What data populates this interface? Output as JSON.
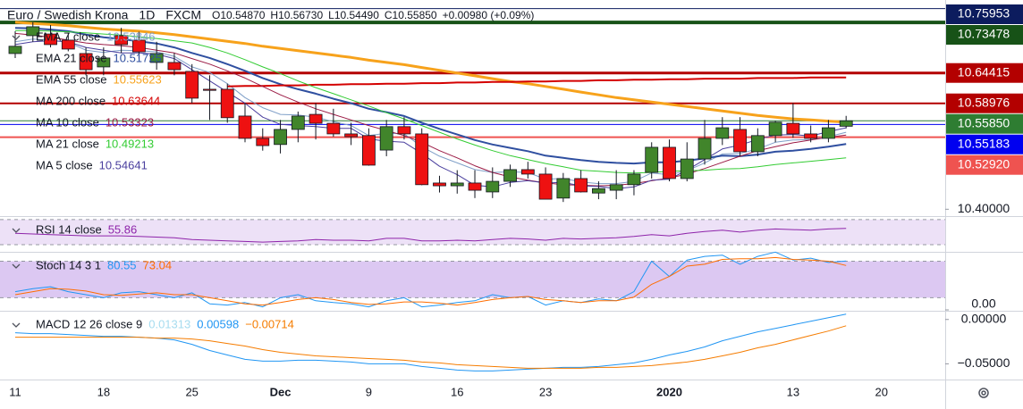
{
  "header": {
    "symbol": "Euro / Swedish Krona",
    "interval": "1D",
    "source": "FXCM",
    "ohlc": [
      {
        "label": "O",
        "value": "10.54870"
      },
      {
        "label": "H",
        "value": "10.56730"
      },
      {
        "label": "L",
        "value": "10.54490"
      },
      {
        "label": "C",
        "value": "10.55850"
      }
    ],
    "change": "+0.00980 (+0.09%)"
  },
  "chart_data": [
    {
      "type": "candlestick",
      "categories": [
        "11",
        null,
        null,
        null,
        null,
        "18",
        null,
        null,
        null,
        null,
        "25",
        null,
        null,
        null,
        null,
        "Dec",
        null,
        null,
        null,
        null,
        "9",
        null,
        null,
        null,
        null,
        "16",
        null,
        null,
        null,
        null,
        "23",
        null,
        null,
        null,
        null,
        null,
        null,
        "2020",
        null,
        null,
        null,
        null,
        null,
        null,
        "13",
        null,
        null,
        null,
        null,
        "20"
      ],
      "open": [
        10.679,
        10.711,
        10.714,
        10.703,
        10.679,
        10.655,
        10.711,
        10.703,
        10.663,
        10.663,
        10.647,
        10.615,
        10.615,
        10.567,
        10.527,
        10.516,
        10.543,
        10.57,
        10.554,
        10.535,
        10.532,
        10.506,
        10.548,
        10.535,
        10.447,
        10.442,
        10.447,
        10.431,
        10.45,
        10.471,
        10.463,
        10.42,
        10.455,
        10.429,
        10.434,
        10.444,
        10.466,
        10.511,
        10.455,
        10.49,
        10.527,
        10.543,
        10.503,
        10.532,
        10.554,
        10.535,
        10.527,
        10.5487,
        null,
        null
      ],
      "high": [
        10.719,
        10.735,
        10.73,
        10.715,
        10.69,
        10.69,
        10.725,
        10.718,
        10.7,
        10.68,
        10.66,
        10.64,
        10.625,
        10.59,
        10.545,
        10.56,
        10.575,
        10.59,
        10.58,
        10.555,
        10.545,
        10.56,
        10.565,
        10.545,
        10.46,
        10.47,
        10.47,
        10.475,
        10.48,
        10.485,
        10.475,
        10.465,
        10.47,
        10.45,
        10.47,
        10.47,
        10.52,
        10.525,
        10.52,
        10.56,
        10.565,
        10.565,
        10.545,
        10.558,
        10.59,
        10.55,
        10.56,
        10.5673,
        null,
        null
      ],
      "low": [
        10.671,
        10.7,
        10.69,
        10.683,
        10.64,
        10.64,
        10.68,
        10.67,
        10.65,
        10.64,
        10.59,
        10.56,
        10.555,
        10.52,
        10.505,
        10.5,
        10.52,
        10.525,
        10.53,
        10.515,
        10.478,
        10.495,
        10.525,
        10.443,
        10.43,
        10.428,
        10.42,
        10.42,
        10.44,
        10.455,
        10.418,
        10.413,
        10.43,
        10.418,
        10.418,
        10.425,
        10.455,
        10.45,
        10.45,
        10.48,
        10.515,
        10.495,
        10.495,
        10.52,
        10.528,
        10.52,
        10.52,
        10.5449,
        null,
        null
      ],
      "close": [
        10.692,
        10.727,
        10.695,
        10.687,
        10.65,
        10.671,
        10.695,
        10.682,
        10.679,
        10.65,
        10.599,
        10.613,
        10.564,
        10.527,
        10.514,
        10.543,
        10.567,
        10.554,
        10.535,
        10.53,
        10.479,
        10.548,
        10.535,
        10.444,
        10.442,
        10.447,
        10.434,
        10.45,
        10.471,
        10.463,
        10.418,
        10.455,
        10.431,
        10.437,
        10.444,
        10.463,
        10.511,
        10.455,
        10.49,
        10.527,
        10.546,
        10.503,
        10.532,
        10.556,
        10.535,
        10.527,
        10.546,
        10.5585,
        null,
        null
      ],
      "up_color": "#41852b",
      "down_color": "#ee1111",
      "ylim": [
        10.3877,
        10.7669
      ],
      "yticks": [
        {
          "value": 10.4,
          "label": "10.40000"
        }
      ],
      "price_lines": [
        {
          "value": 10.75953,
          "label": "10.75953",
          "color": "#0c1c5e",
          "width": 1
        },
        {
          "value": 10.73478,
          "label": "10.73478",
          "color": "#175217",
          "width": 4
        },
        {
          "value": 10.64415,
          "label": "10.64415",
          "color": "#b30000",
          "width": 3
        },
        {
          "value": 10.58976,
          "label": "10.58976",
          "color": "#b30000",
          "width": 2
        },
        {
          "value": 10.5585,
          "label": "10.55850",
          "color": "#2e7d32",
          "width": 1
        },
        {
          "value": 10.55183,
          "label": "10.55183",
          "color": "#0000f0",
          "width": 1
        },
        {
          "value": 10.5292,
          "label": "10.52920",
          "color": "#ef5350",
          "width": 2
        }
      ],
      "series": [
        {
          "name": "EMA 7 close",
          "last": "10.53846",
          "color": "#7f9fc8",
          "width": 1,
          "values": [
            10.7,
            10.705,
            10.703,
            10.699,
            10.685,
            10.681,
            10.685,
            10.684,
            10.682,
            10.674,
            10.655,
            10.645,
            10.625,
            10.6,
            10.582,
            10.57,
            10.569,
            10.565,
            10.557,
            10.55,
            10.532,
            10.536,
            10.535,
            10.512,
            10.495,
            10.483,
            10.471,
            10.466,
            10.467,
            10.466,
            10.454,
            10.455,
            10.449,
            10.446,
            10.446,
            10.45,
            10.465,
            10.462,
            10.469,
            10.483,
            10.499,
            10.5,
            10.508,
            10.52,
            10.524,
            10.525,
            10.53,
            10.538,
            null,
            null
          ]
        },
        {
          "name": "EMA 21 close",
          "last": "10.51725",
          "color": "#2f4fa0",
          "width": 2,
          "values": [
            10.725,
            10.724,
            10.722,
            10.719,
            10.713,
            10.708,
            10.705,
            10.701,
            10.697,
            10.69,
            10.68,
            10.671,
            10.66,
            10.648,
            10.635,
            10.624,
            10.615,
            10.607,
            10.598,
            10.59,
            10.58,
            10.574,
            10.567,
            10.555,
            10.544,
            10.534,
            10.524,
            10.516,
            10.51,
            10.504,
            10.496,
            10.492,
            10.488,
            10.485,
            10.483,
            10.482,
            10.484,
            10.484,
            10.487,
            10.491,
            10.496,
            10.495,
            10.498,
            10.503,
            10.505,
            10.508,
            10.512,
            10.517,
            null,
            null
          ]
        },
        {
          "name": "EMA 55 close",
          "last": "10.55623",
          "color": "#f7a21b",
          "width": 3,
          "values": [
            10.735,
            10.733,
            10.731,
            10.729,
            10.726,
            10.723,
            10.721,
            10.719,
            10.716,
            10.713,
            10.709,
            10.705,
            10.701,
            10.697,
            10.692,
            10.688,
            10.684,
            10.68,
            10.676,
            10.672,
            10.667,
            10.663,
            10.659,
            10.654,
            10.649,
            10.644,
            10.639,
            10.634,
            10.629,
            10.625,
            10.62,
            10.615,
            10.61,
            10.605,
            10.6,
            10.596,
            10.592,
            10.588,
            10.584,
            10.58,
            10.576,
            10.572,
            10.568,
            10.565,
            10.562,
            10.56,
            10.558,
            10.556,
            null,
            null
          ]
        },
        {
          "name": "MA 200 close",
          "last": "10.63644",
          "color": "#d40000",
          "width": 2,
          "values": [
            null,
            null,
            null,
            null,
            null,
            null,
            null,
            null,
            null,
            null,
            null,
            null,
            10.62,
            10.621,
            10.621,
            10.622,
            10.622,
            10.623,
            10.623,
            10.624,
            10.624,
            10.625,
            10.625,
            10.626,
            10.626,
            10.627,
            10.627,
            10.628,
            10.628,
            10.629,
            10.629,
            10.63,
            10.63,
            10.631,
            10.631,
            10.632,
            10.632,
            10.633,
            10.633,
            10.634,
            10.634,
            10.634,
            10.635,
            10.635,
            10.635,
            10.636,
            10.636,
            10.636,
            null,
            null
          ]
        },
        {
          "name": "MA 10 close",
          "last": "10.53323",
          "color": "#9b1b45",
          "width": 1,
          "values": [
            10.715,
            10.712,
            10.708,
            10.703,
            10.698,
            10.695,
            10.693,
            10.69,
            10.685,
            10.68,
            10.67,
            10.66,
            10.648,
            10.635,
            10.62,
            10.605,
            10.592,
            10.58,
            10.57,
            10.56,
            10.55,
            10.541,
            10.532,
            10.52,
            10.505,
            10.492,
            10.478,
            10.466,
            10.458,
            10.452,
            10.447,
            10.444,
            10.443,
            10.442,
            10.443,
            10.446,
            10.451,
            10.456,
            10.463,
            10.473,
            10.484,
            10.495,
            10.505,
            10.512,
            10.519,
            10.524,
            10.529,
            10.533,
            null,
            null
          ]
        },
        {
          "name": "MA 21 close",
          "last": "10.49213",
          "color": "#33cc33",
          "width": 1,
          "values": [
            10.72,
            10.72,
            10.719,
            10.718,
            10.716,
            10.714,
            10.712,
            10.709,
            10.706,
            10.702,
            10.698,
            10.69,
            10.68,
            10.668,
            10.655,
            10.643,
            10.63,
            10.618,
            10.607,
            10.596,
            10.585,
            10.573,
            10.562,
            10.55,
            10.538,
            10.526,
            10.515,
            10.505,
            10.496,
            10.489,
            10.482,
            10.476,
            10.47,
            10.468,
            10.466,
            10.465,
            10.466,
            10.468,
            10.469,
            10.47,
            10.472,
            10.473,
            10.476,
            10.48,
            10.483,
            10.486,
            10.489,
            10.492,
            null,
            null
          ]
        },
        {
          "name": "MA 5 close",
          "last": "10.54641",
          "color": "#4a3f9e",
          "width": 1,
          "values": [
            10.695,
            10.7,
            10.702,
            10.7,
            10.69,
            10.685,
            10.68,
            10.68,
            10.678,
            10.67,
            10.65,
            10.63,
            10.61,
            10.59,
            10.565,
            10.552,
            10.55,
            10.548,
            10.545,
            10.545,
            10.526,
            10.522,
            10.52,
            10.5,
            10.477,
            10.462,
            10.443,
            10.44,
            10.448,
            10.451,
            10.447,
            10.448,
            10.442,
            10.441,
            10.437,
            10.44,
            10.452,
            10.454,
            10.47,
            10.489,
            10.508,
            10.515,
            10.525,
            10.533,
            10.534,
            10.531,
            10.539,
            10.546,
            null,
            null
          ]
        }
      ]
    },
    {
      "type": "line",
      "ylim": [
        20,
        74
      ],
      "band": [
        30,
        70
      ],
      "band_color": "#ede1f7",
      "series": [
        {
          "name": "RSI 14 close",
          "last": "55.86",
          "color": "#8e24aa",
          "width": 1,
          "values": [
            48,
            47,
            46,
            45,
            44,
            44,
            44,
            43,
            42,
            41,
            38,
            37,
            36,
            35,
            34,
            35,
            36,
            38,
            37,
            37,
            36,
            40,
            40,
            36,
            36,
            37,
            36,
            38,
            40,
            39,
            37,
            40,
            39,
            40,
            41,
            43,
            46,
            44,
            48,
            51,
            53,
            50,
            53,
            55,
            54,
            53,
            55,
            55.86,
            null,
            null
          ]
        }
      ]
    },
    {
      "type": "line",
      "title": "Stoch 14 3 1",
      "ylim": [
        0,
        94
      ],
      "yticks": [
        {
          "value": 0,
          "label": "0.00"
        }
      ],
      "band": [
        20,
        80
      ],
      "band_color": "#dcc8f2",
      "series": [
        {
          "last": "80.55",
          "color": "#2196f3",
          "width": 1,
          "values": [
            30,
            35,
            38,
            30,
            25,
            20,
            28,
            30,
            25,
            20,
            28,
            10,
            8,
            12,
            5,
            20,
            25,
            15,
            12,
            10,
            5,
            15,
            20,
            5,
            8,
            12,
            15,
            25,
            20,
            22,
            8,
            15,
            12,
            18,
            15,
            30,
            80,
            55,
            82,
            88,
            90,
            75,
            88,
            95,
            82,
            85,
            78,
            80.55,
            null,
            null
          ]
        },
        {
          "last": "73.04",
          "color": "#ff6d00",
          "width": 1,
          "values": [
            25,
            30,
            35,
            34,
            31,
            25,
            24,
            26,
            28,
            25,
            25,
            20,
            15,
            10,
            8,
            12,
            17,
            20,
            17,
            12,
            9,
            10,
            13,
            13,
            11,
            8,
            12,
            17,
            20,
            22,
            17,
            15,
            12,
            15,
            15,
            21,
            42,
            55,
            72,
            75,
            83,
            84,
            84,
            86,
            83,
            82,
            80,
            73.04,
            null,
            null
          ]
        }
      ]
    },
    {
      "type": "line",
      "title": "MACD 12 26 close 9",
      "ylim": [
        -0.0667,
        0.0088
      ],
      "yticks": [
        {
          "value": 0,
          "label": "0.00000"
        },
        {
          "value": -0.05,
          "label": "−0.05000"
        }
      ],
      "series": [
        {
          "last": "0.01313",
          "color": "#a6dcef"
        },
        {
          "last": "0.00598",
          "color": "#2196f3",
          "width": 1,
          "values": [
            -0.015,
            -0.016,
            -0.016,
            -0.017,
            -0.018,
            -0.019,
            -0.019,
            -0.02,
            -0.021,
            -0.023,
            -0.028,
            -0.035,
            -0.04,
            -0.045,
            -0.047,
            -0.047,
            -0.046,
            -0.046,
            -0.047,
            -0.048,
            -0.05,
            -0.05,
            -0.05,
            -0.053,
            -0.055,
            -0.057,
            -0.058,
            -0.058,
            -0.057,
            -0.056,
            -0.055,
            -0.054,
            -0.054,
            -0.053,
            -0.051,
            -0.049,
            -0.045,
            -0.04,
            -0.036,
            -0.031,
            -0.024,
            -0.019,
            -0.014,
            -0.01,
            -0.006,
            -0.002,
            0.002,
            0.00598,
            null,
            null
          ]
        },
        {
          "last": "−0.00714",
          "color": "#f57c00",
          "width": 1,
          "values": [
            -0.02,
            -0.02,
            -0.02,
            -0.02,
            -0.02,
            -0.02,
            -0.02,
            -0.02,
            -0.021,
            -0.021,
            -0.022,
            -0.024,
            -0.027,
            -0.03,
            -0.034,
            -0.037,
            -0.039,
            -0.041,
            -0.042,
            -0.043,
            -0.044,
            -0.045,
            -0.046,
            -0.048,
            -0.049,
            -0.051,
            -0.052,
            -0.053,
            -0.054,
            -0.055,
            -0.055,
            -0.055,
            -0.055,
            -0.054,
            -0.054,
            -0.053,
            -0.052,
            -0.05,
            -0.048,
            -0.045,
            -0.041,
            -0.037,
            -0.032,
            -0.028,
            -0.023,
            -0.018,
            -0.013,
            -0.00714,
            null,
            null
          ]
        }
      ]
    }
  ]
}
